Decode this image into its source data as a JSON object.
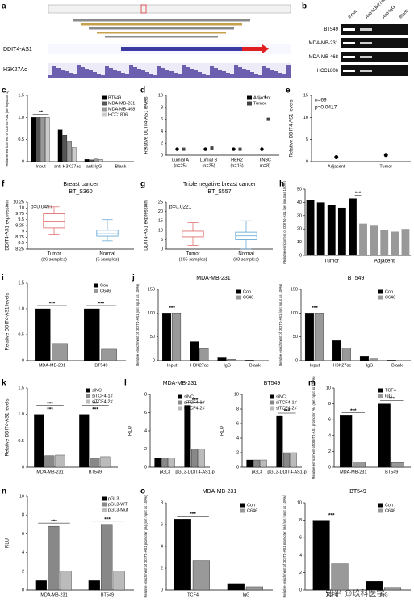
{
  "watermark": "知乎 @玖科医学",
  "chart_data": [
    {
      "panel": "a",
      "type": "track",
      "labels": [
        "DDIT4-AS1",
        "H3K27Ac"
      ]
    },
    {
      "panel": "b",
      "type": "gel",
      "columns": [
        "Input",
        "Anti-H3k27ac",
        "Anti-IgG",
        "Blank"
      ],
      "rows": [
        "BT549",
        "MDA-MB-231",
        "MDA-MB-468",
        "HCC1806"
      ]
    },
    {
      "panel": "c",
      "type": "bar",
      "ylabel": "Relative enrichment of DDIT4-AS1 (set input as 1)",
      "categories": [
        "Input",
        "anti-H3K27ac",
        "anti-IgG",
        "Blank"
      ],
      "series": [
        {
          "name": "BT549",
          "color": "#000000",
          "values": [
            1,
            0.72,
            0.05,
            0
          ]
        },
        {
          "name": "MDA-MB-231",
          "color": "#555555",
          "values": [
            1,
            0.6,
            0.04,
            0
          ]
        },
        {
          "name": "MDA-MB-468",
          "color": "#999999",
          "values": [
            1,
            0.45,
            0.06,
            0
          ]
        },
        {
          "name": "HCC1806",
          "color": "#cccccc",
          "values": [
            1,
            0.32,
            0.05,
            0
          ]
        }
      ],
      "ylim": [
        0,
        1.5
      ],
      "yticks": [
        0,
        {
          "value": 0.5,
          "label": "0.5"
        },
        {
          "value": 1,
          "label": "1.0"
        },
        {
          "value": 1.5,
          "label": "1.5"
        }
      ],
      "annotations": [
        "**"
      ]
    },
    {
      "panel": "d",
      "type": "dot",
      "ylabel": "Relative DDIT4-AS1 levels",
      "categories": [
        "Lumial A",
        "Lumial B",
        "HER2",
        "TNBC"
      ],
      "category_notes": [
        "(n=25)",
        "(n=25)",
        "(n=16)",
        "(n=8)"
      ],
      "series": [
        {
          "name": "Adjacent",
          "color": "#000000",
          "values": [
            1,
            1,
            1,
            1
          ]
        },
        {
          "name": "Tumor",
          "color": "#444444",
          "values": [
            1,
            1.2,
            1,
            6
          ]
        }
      ],
      "ylim": [
        0,
        10
      ],
      "yticks": [
        0,
        2,
        4,
        6,
        8,
        10
      ],
      "annotations": [
        "*"
      ]
    },
    {
      "panel": "e",
      "type": "dot",
      "ylabel": "Relative DDIT4-AS1 levels",
      "categories": [
        "Adjacent",
        "Tumor"
      ],
      "values": [
        1,
        1.5
      ],
      "color": "#000000",
      "notes": [
        "n=69",
        "p=0.0417"
      ],
      "ylim": [
        0,
        15
      ],
      "yticks": [
        0,
        5,
        10,
        15
      ]
    },
    {
      "panel": "f",
      "type": "box",
      "title": "Breast cancer",
      "subtitle": "BT_S360",
      "ylabel": "DDIT4-AS1 expression",
      "notes": [
        "p=0.0497"
      ],
      "boxes": [
        {
          "label": "Tumor",
          "note": "(26 samples)",
          "color": "#e06060",
          "min": 8.85,
          "q1": 9.15,
          "median": 9.4,
          "q3": 9.75,
          "max": 10.05
        },
        {
          "label": "Normal",
          "note": "(5 samples)",
          "color": "#5aa0d0",
          "min": 8.6,
          "q1": 8.8,
          "median": 8.9,
          "q3": 9.05,
          "max": 9.5
        }
      ],
      "ylim": [
        8.25,
        10.25
      ],
      "yticks": [
        8.25,
        8.5,
        8.75,
        9,
        9.25,
        9.5,
        9.75,
        10,
        10.25
      ]
    },
    {
      "panel": "g",
      "type": "box",
      "title": "Triple negative breast cancer",
      "subtitle": "BT_S557",
      "ylabel": "DDIT4-AS1 expression",
      "notes": [
        "p=0.0221"
      ],
      "boxes": [
        {
          "label": "Tumor",
          "note": "(165 samples)",
          "color": "#e06060",
          "min": 2,
          "q1": 6.5,
          "median": 8,
          "q3": 9.5,
          "max": 14
        },
        {
          "label": "Normal",
          "note": "(33 samples)",
          "color": "#5aa0d0",
          "min": 0,
          "q1": 5,
          "median": 7,
          "q3": 9,
          "max": 15
        }
      ],
      "ylim": [
        0,
        25
      ],
      "yticks": [
        0,
        5,
        10,
        15,
        20,
        25
      ]
    },
    {
      "panel": "h",
      "type": "bar",
      "ylabel": "Relative enrichment of DDIT4-AS1 (set input as 100%)",
      "categories": [
        null,
        null,
        null,
        null,
        null,
        null,
        null,
        null,
        null,
        null
      ],
      "group_labels": [
        "Tumor",
        "Adjacent"
      ],
      "values": [
        42,
        40,
        38,
        36,
        43,
        24,
        23,
        19,
        18,
        20
      ],
      "colors": [
        "#000000",
        "#000000",
        "#000000",
        "#000000",
        "#000000",
        "#999999",
        "#999999",
        "#999999",
        "#999999",
        "#999999"
      ],
      "ylim": [
        0,
        50
      ],
      "yticks": [
        0,
        10,
        20,
        30,
        40,
        50
      ],
      "annotations": [
        "***"
      ]
    },
    {
      "panel": "i",
      "type": "bar",
      "ylabel": "Relative DDIT4-AS1 levels",
      "categories": [
        "MDA-MB-231",
        "BT549"
      ],
      "series": [
        {
          "name": "Con",
          "color": "#000000",
          "values": [
            1,
            1
          ]
        },
        {
          "name": "C646",
          "color": "#999999",
          "values": [
            0.33,
            0.22
          ]
        }
      ],
      "ylim": [
        0,
        1.5
      ],
      "yticks": [
        0,
        {
          "value": 0.5,
          "label": "0.5"
        },
        {
          "value": 1,
          "label": "1.0"
        },
        {
          "value": 1.5,
          "label": "1.5"
        }
      ],
      "annotations": [
        "***",
        "***"
      ]
    },
    {
      "panel": "j",
      "type": "bar",
      "title": "MDA-MB-231",
      "ylabel": "Relative enrichment of DDIT4-AS1 (set input as 100%)",
      "categories": [
        "Input",
        "H3K27ac",
        "IgG",
        "Blank"
      ],
      "series": [
        {
          "name": "Con",
          "color": "#000000",
          "values": [
            100,
            40,
            6,
            1
          ]
        },
        {
          "name": "C646",
          "color": "#999999",
          "values": [
            100,
            25,
            3,
            0
          ]
        }
      ],
      "ylim": [
        0,
        150
      ],
      "yticks": [
        0,
        50,
        100,
        150
      ],
      "annotations": [
        "***"
      ]
    },
    {
      "type": "bar",
      "title": "BT549",
      "ylabel": "Relative enrichment of DDIT4-AS1 (set input as 100%)",
      "categories": [
        "Input",
        "H3K27ac",
        "IgG",
        "Blank"
      ],
      "series": [
        {
          "name": "Con",
          "color": "#000000",
          "values": [
            100,
            42,
            8,
            1
          ]
        },
        {
          "name": "C646",
          "color": "#999999",
          "values": [
            100,
            27,
            4,
            0
          ]
        }
      ],
      "ylim": [
        0,
        150
      ],
      "yticks": [
        0,
        50,
        100,
        150
      ],
      "annotations": [
        "***"
      ]
    },
    {
      "panel": "k",
      "type": "bar",
      "ylabel": "Relative DDIT4-AS1 levels",
      "categories": [
        "MDA-MB-231",
        "BT549"
      ],
      "series": [
        {
          "name": "siNC",
          "color": "#000000",
          "values": [
            1,
            1
          ]
        },
        {
          "name": "siTCF4-1#",
          "color": "#888888",
          "values": [
            0.22,
            0.17
          ]
        },
        {
          "name": "siTCF4-2#",
          "color": "#bbbbbb",
          "values": [
            0.23,
            0.2
          ]
        }
      ],
      "ylim": [
        0,
        1.5
      ],
      "yticks": [
        0,
        {
          "value": 0.5,
          "label": "0.5"
        },
        {
          "value": 1,
          "label": "1.0"
        },
        {
          "value": 1.5,
          "label": "1.5"
        }
      ],
      "annotations": [
        "***",
        "***",
        "***",
        "***"
      ]
    },
    {
      "panel": "l",
      "type": "bar",
      "title": "MDA-MB-231",
      "ylabel": "RLU",
      "categories": [
        "pGL3",
        "pGL3-DDIT4-AS1-p"
      ],
      "series": [
        {
          "name": "siNC",
          "color": "#000000",
          "values": [
            1,
            6.8
          ]
        },
        {
          "name": "siTCF4-1#",
          "color": "#888888",
          "values": [
            1,
            2
          ]
        },
        {
          "name": "siTCF4-2#",
          "color": "#bbbbbb",
          "values": [
            1,
            2
          ]
        }
      ],
      "ylim": [
        0,
        8
      ],
      "yticks": [
        0,
        2,
        4,
        6,
        8
      ],
      "annotations": [
        "***"
      ]
    },
    {
      "type": "bar",
      "title": "BT549",
      "ylabel": "RLU",
      "categories": [
        "pGL3",
        "pGL3-DDIT4-AS1-p"
      ],
      "series": [
        {
          "name": "siNC",
          "color": "#000000",
          "values": [
            1,
            7
          ]
        },
        {
          "name": "siTCF4-1#",
          "color": "#888888",
          "values": [
            1,
            2
          ]
        },
        {
          "name": "siTCF4-2#",
          "color": "#bbbbbb",
          "values": [
            1,
            2
          ]
        }
      ],
      "ylim": [
        0,
        10
      ],
      "yticks": [
        0,
        2,
        4,
        6,
        8,
        10
      ],
      "annotations": [
        "***"
      ]
    },
    {
      "panel": "m",
      "type": "bar",
      "ylabel": "Relative enrichment of DDIT4-AS1 promoter (%) (set input as 100%)",
      "categories": [
        "MDA-MB-231",
        "BT549"
      ],
      "series": [
        {
          "name": "TCF4",
          "color": "#000000",
          "values": [
            6.5,
            8
          ]
        },
        {
          "name": "IgG",
          "color": "#999999",
          "values": [
            0.7,
            0.6
          ]
        }
      ],
      "ylim": [
        0,
        10
      ],
      "yticks": [
        0,
        2,
        4,
        6,
        8,
        10
      ],
      "annotations": [
        "***",
        "***"
      ]
    },
    {
      "panel": "n",
      "type": "bar",
      "ylabel": "RLU",
      "categories": [
        "MDA-MB-231",
        "BT549"
      ],
      "series": [
        {
          "name": "pGL3",
          "color": "#000000",
          "values": [
            1,
            1
          ]
        },
        {
          "name": "pGL3-WT",
          "color": "#888888",
          "values": [
            6.8,
            7
          ]
        },
        {
          "name": "pGL3-Mut",
          "color": "#bbbbbb",
          "values": [
            2,
            2
          ]
        }
      ],
      "ylim": [
        0,
        10
      ],
      "yticks": [
        0,
        2,
        4,
        6,
        8,
        10
      ],
      "annotations": [
        "***",
        "***"
      ]
    },
    {
      "panel": "o",
      "type": "bar",
      "title": "MDA-MB-231",
      "ylabel": "Relative enrichment of DDIT4-AS1 promoter (%) (set input as 100%)",
      "categories": [
        "TCF4",
        "IgG"
      ],
      "series": [
        {
          "name": "Con",
          "color": "#000000",
          "values": [
            6.5,
            0.6
          ]
        },
        {
          "name": "C646",
          "color": "#999999",
          "values": [
            2.7,
            0.3
          ]
        }
      ],
      "ylim": [
        0,
        8
      ],
      "yticks": [
        0,
        2,
        4,
        6,
        8
      ],
      "annotations": [
        "***"
      ]
    },
    {
      "type": "bar",
      "title": "BT549",
      "ylabel": "Relative enrichment of DDIT4-AS1 promoter (%) (set input as 100%)",
      "categories": [
        "TCF4",
        "IgG"
      ],
      "series": [
        {
          "name": "Con",
          "color": "#000000",
          "values": [
            8,
            1
          ]
        },
        {
          "name": "C646",
          "color": "#999999",
          "values": [
            3,
            0.3
          ]
        }
      ],
      "ylim": [
        0,
        10
      ],
      "yticks": [
        0,
        2,
        4,
        6,
        8,
        10
      ],
      "annotations": [
        "***"
      ]
    }
  ]
}
